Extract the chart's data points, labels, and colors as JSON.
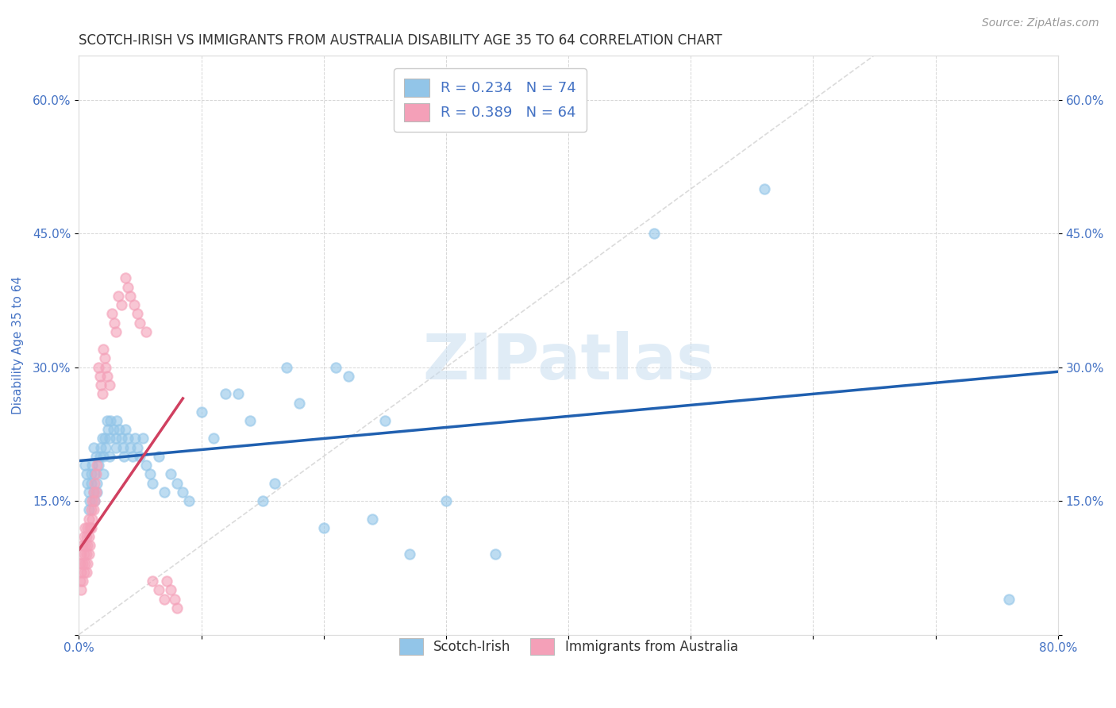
{
  "title": "SCOTCH-IRISH VS IMMIGRANTS FROM AUSTRALIA DISABILITY AGE 35 TO 64 CORRELATION CHART",
  "source": "Source: ZipAtlas.com",
  "ylabel": "Disability Age 35 to 64",
  "xlim": [
    0.0,
    0.8
  ],
  "ylim": [
    0.0,
    0.65
  ],
  "xtick_vals": [
    0.0,
    0.1,
    0.2,
    0.3,
    0.4,
    0.5,
    0.6,
    0.7,
    0.8
  ],
  "xtick_labels": [
    "0.0%",
    "",
    "",
    "",
    "",
    "",
    "",
    "",
    "80.0%"
  ],
  "ytick_vals": [
    0.0,
    0.15,
    0.3,
    0.45,
    0.6
  ],
  "ytick_labels": [
    "",
    "15.0%",
    "30.0%",
    "45.0%",
    "60.0%"
  ],
  "series1_color": "#92C5E8",
  "series2_color": "#F4A0B8",
  "trendline1_color": "#2060B0",
  "trendline2_color": "#D04060",
  "refline_color": "#cccccc",
  "legend_r1": "R = 0.234",
  "legend_n1": "N = 74",
  "legend_r2": "R = 0.389",
  "legend_n2": "N = 64",
  "watermark": "ZIPatlas",
  "background_color": "#ffffff",
  "grid_color": "#cccccc",
  "title_color": "#333333",
  "axis_label_color": "#4472C4",
  "tick_label_color": "#4472C4",
  "trendline1_x0": 0.0,
  "trendline1_y0": 0.195,
  "trendline1_x1": 0.8,
  "trendline1_y1": 0.295,
  "trendline2_x0": 0.0,
  "trendline2_y0": 0.095,
  "trendline2_x1": 0.085,
  "trendline2_y1": 0.265,
  "scotch_x": [
    0.005,
    0.006,
    0.007,
    0.008,
    0.008,
    0.009,
    0.01,
    0.01,
    0.011,
    0.012,
    0.012,
    0.013,
    0.013,
    0.014,
    0.015,
    0.015,
    0.016,
    0.017,
    0.018,
    0.019,
    0.02,
    0.02,
    0.021,
    0.022,
    0.023,
    0.024,
    0.025,
    0.025,
    0.026,
    0.028,
    0.03,
    0.03,
    0.031,
    0.033,
    0.035,
    0.036,
    0.037,
    0.038,
    0.04,
    0.042,
    0.044,
    0.046,
    0.048,
    0.05,
    0.052,
    0.055,
    0.058,
    0.06,
    0.065,
    0.07,
    0.075,
    0.08,
    0.085,
    0.09,
    0.1,
    0.11,
    0.12,
    0.13,
    0.14,
    0.15,
    0.16,
    0.17,
    0.18,
    0.2,
    0.21,
    0.22,
    0.24,
    0.25,
    0.27,
    0.3,
    0.34,
    0.47,
    0.56,
    0.76
  ],
  "scotch_y": [
    0.19,
    0.18,
    0.17,
    0.16,
    0.14,
    0.15,
    0.18,
    0.17,
    0.19,
    0.21,
    0.16,
    0.15,
    0.18,
    0.2,
    0.17,
    0.16,
    0.19,
    0.2,
    0.21,
    0.22,
    0.2,
    0.18,
    0.22,
    0.21,
    0.24,
    0.23,
    0.22,
    0.2,
    0.24,
    0.23,
    0.22,
    0.21,
    0.24,
    0.23,
    0.22,
    0.21,
    0.2,
    0.23,
    0.22,
    0.21,
    0.2,
    0.22,
    0.21,
    0.2,
    0.22,
    0.19,
    0.18,
    0.17,
    0.2,
    0.16,
    0.18,
    0.17,
    0.16,
    0.15,
    0.25,
    0.22,
    0.27,
    0.27,
    0.24,
    0.15,
    0.17,
    0.3,
    0.26,
    0.12,
    0.3,
    0.29,
    0.13,
    0.24,
    0.09,
    0.15,
    0.09,
    0.45,
    0.5,
    0.04
  ],
  "aus_x": [
    0.001,
    0.001,
    0.002,
    0.002,
    0.002,
    0.003,
    0.003,
    0.003,
    0.004,
    0.004,
    0.004,
    0.005,
    0.005,
    0.005,
    0.006,
    0.006,
    0.006,
    0.007,
    0.007,
    0.007,
    0.008,
    0.008,
    0.008,
    0.009,
    0.009,
    0.01,
    0.01,
    0.011,
    0.011,
    0.012,
    0.012,
    0.013,
    0.013,
    0.014,
    0.014,
    0.015,
    0.016,
    0.017,
    0.018,
    0.019,
    0.02,
    0.021,
    0.022,
    0.023,
    0.025,
    0.027,
    0.029,
    0.03,
    0.032,
    0.035,
    0.038,
    0.04,
    0.042,
    0.045,
    0.048,
    0.05,
    0.055,
    0.06,
    0.065,
    0.07,
    0.072,
    0.075,
    0.078,
    0.08
  ],
  "aus_y": [
    0.08,
    0.06,
    0.09,
    0.07,
    0.05,
    0.1,
    0.08,
    0.06,
    0.11,
    0.09,
    0.07,
    0.12,
    0.1,
    0.08,
    0.11,
    0.09,
    0.07,
    0.12,
    0.1,
    0.08,
    0.13,
    0.11,
    0.09,
    0.12,
    0.1,
    0.14,
    0.12,
    0.15,
    0.13,
    0.16,
    0.14,
    0.17,
    0.15,
    0.18,
    0.16,
    0.19,
    0.3,
    0.29,
    0.28,
    0.27,
    0.32,
    0.31,
    0.3,
    0.29,
    0.28,
    0.36,
    0.35,
    0.34,
    0.38,
    0.37,
    0.4,
    0.39,
    0.38,
    0.37,
    0.36,
    0.35,
    0.34,
    0.06,
    0.05,
    0.04,
    0.06,
    0.05,
    0.04,
    0.03
  ]
}
